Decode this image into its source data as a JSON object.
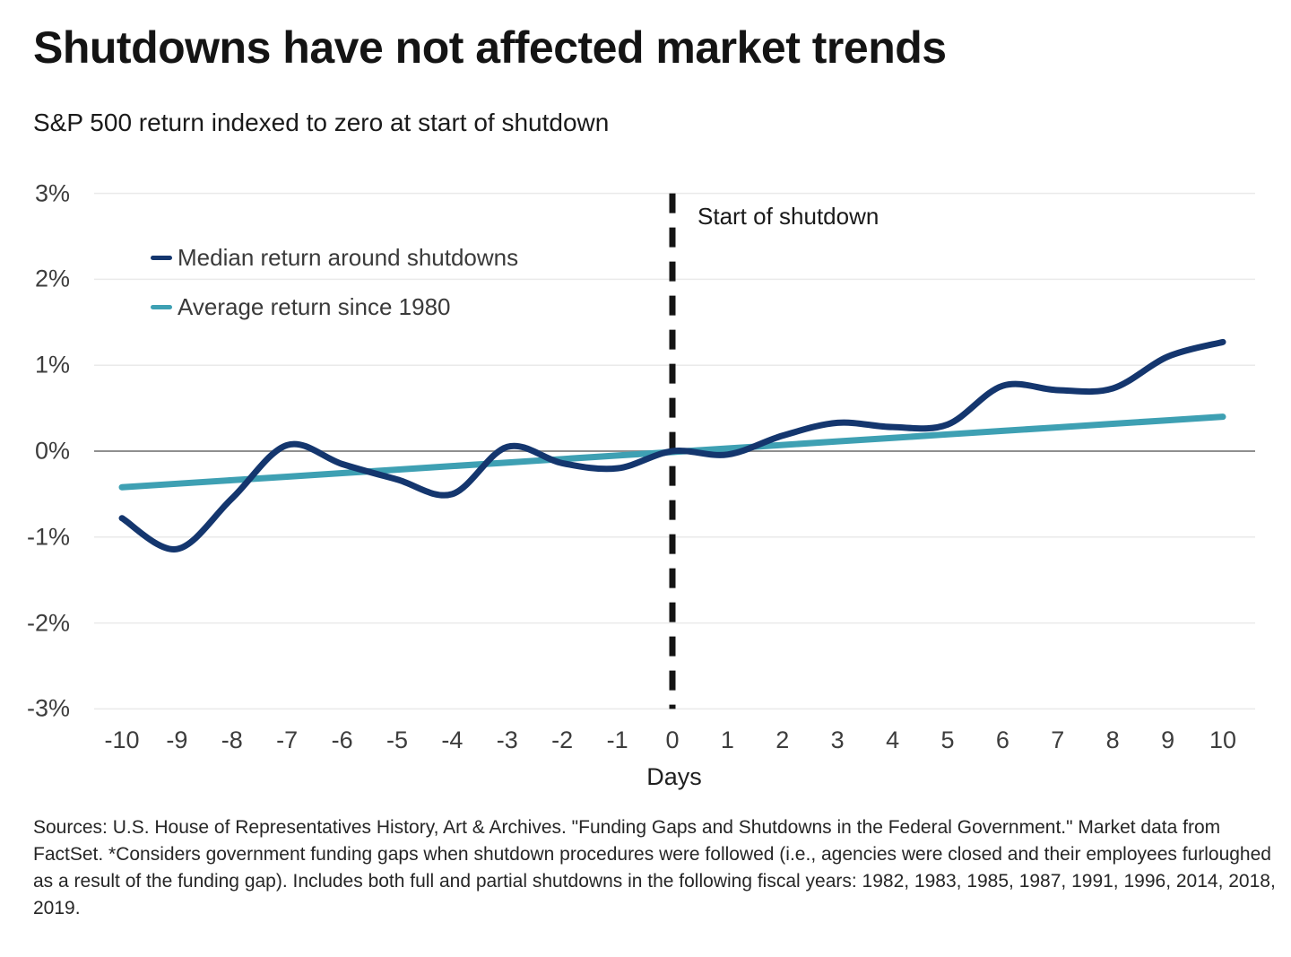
{
  "header": {
    "title": "Shutdowns have not affected market trends",
    "subtitle": "S&P 500 return indexed to zero at start of shutdown"
  },
  "chart": {
    "annotation": "Start of shutdown",
    "xlabel": "Days"
  },
  "chart_data": {
    "type": "line",
    "title": "Shutdowns have not affected market trends",
    "subtitle": "S&P 500 return indexed to zero at start of shutdown",
    "xlabel": "Days",
    "ylabel": "",
    "x": [
      -10,
      -9,
      -8,
      -7,
      -6,
      -5,
      -4,
      -3,
      -2,
      -1,
      0,
      1,
      2,
      3,
      4,
      5,
      6,
      7,
      8,
      9,
      10
    ],
    "x_tick_labels": [
      "-10",
      "-9",
      "-8",
      "-7",
      "-6",
      "-5",
      "-4",
      "-3",
      "-2",
      "-1",
      "0",
      "1",
      "2",
      "3",
      "4",
      "5",
      "6",
      "7",
      "8",
      "9",
      "10"
    ],
    "y_ticks": [
      {
        "label": "3%",
        "value": 3
      },
      {
        "label": "2%",
        "value": 2
      },
      {
        "label": "1%",
        "value": 1
      },
      {
        "label": "0%",
        "value": 0
      },
      {
        "label": "-1%",
        "value": -1
      },
      {
        "label": "-2%",
        "value": -2
      },
      {
        "label": "-3%",
        "value": -3
      }
    ],
    "ylim": [
      -3,
      3
    ],
    "xlim": [
      -10,
      10
    ],
    "grid": "horizontal",
    "legend_position": "top-left",
    "annotation": {
      "text": "Start of shutdown",
      "x": 0
    },
    "series": [
      {
        "name": "Median return around shutdowns",
        "color": "#14366e",
        "smooth": true,
        "values": [
          -0.78,
          -1.14,
          -0.55,
          0.07,
          -0.15,
          -0.33,
          -0.5,
          0.05,
          -0.14,
          -0.2,
          0.0,
          -0.04,
          0.18,
          0.33,
          0.28,
          0.31,
          0.76,
          0.71,
          0.73,
          1.1,
          1.27
        ]
      },
      {
        "name": "Average return since 1980",
        "color": "#3ea0b3",
        "smooth": false,
        "values": [
          -0.42,
          -0.379,
          -0.338,
          -0.297,
          -0.256,
          -0.215,
          -0.174,
          -0.133,
          -0.092,
          -0.051,
          -0.01,
          0.031,
          0.072,
          0.113,
          0.154,
          0.195,
          0.236,
          0.277,
          0.318,
          0.359,
          0.4
        ]
      }
    ],
    "styles": {
      "grid_color": "#eaeaea",
      "zero_line_color": "#8f8f8f",
      "shutdown_line_color": "#141414"
    }
  },
  "footer": {
    "sources": "Sources: U.S. House of Representatives History, Art & Archives. \"Funding Gaps and Shutdowns in the Federal Government.\" Market data from FactSet. *Considers government funding gaps when shutdown procedures were followed (i.e., agencies were closed and their employees furloughed as a result of the funding gap). Includes both full and partial shutdowns in the following fiscal years: 1982, 1983, 1985, 1987, 1991, 1996, 2014, 2018, 2019."
  }
}
